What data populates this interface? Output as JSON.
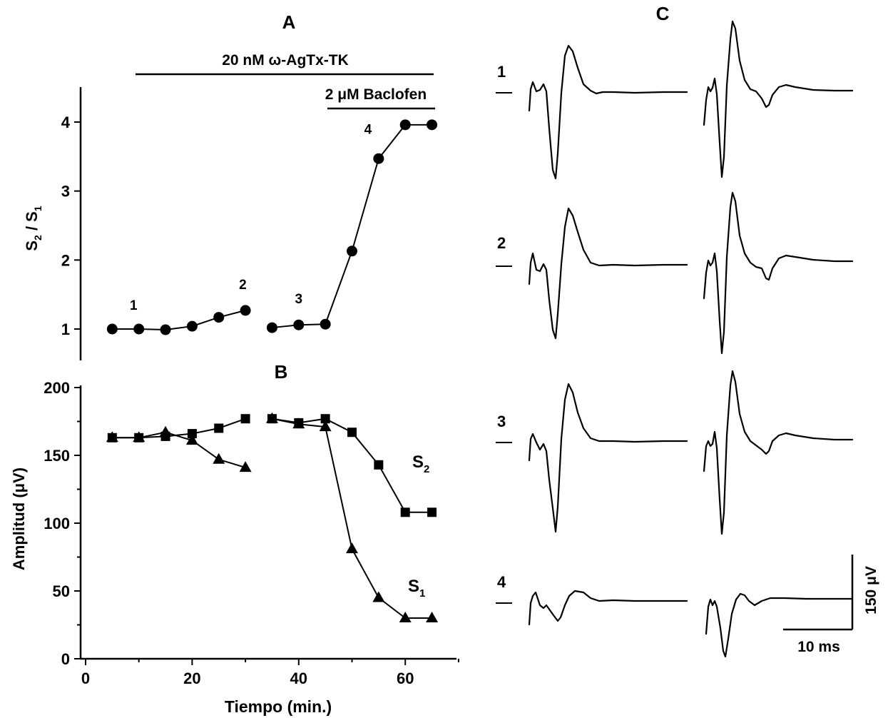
{
  "chart_data": [
    {
      "panel": "A",
      "type": "scatter",
      "title": "A",
      "ylabel": "S2 / S1",
      "ylabel_main": "S",
      "ylabel_sub1": "2",
      "ylabel_slash": " / S",
      "ylabel_sub2": "1",
      "xlim": [
        0,
        70
      ],
      "ylim": [
        0.6,
        4.5
      ],
      "yticks": [
        1,
        2,
        3,
        4
      ],
      "series": [
        {
          "segments": [
            {
              "x": [
                5,
                10,
                15,
                20,
                25,
                30
              ],
              "y": [
                1.0,
                1.0,
                0.99,
                1.04,
                1.17,
                1.27
              ]
            },
            {
              "x": [
                35,
                40,
                45,
                50,
                55,
                60,
                65
              ],
              "y": [
                1.02,
                1.06,
                1.07,
                2.13,
                3.47,
                3.96,
                3.96
              ]
            }
          ],
          "marker": "circle"
        }
      ],
      "point_labels": [
        {
          "text": "1",
          "x": 9,
          "y": 1.28
        },
        {
          "text": "2",
          "x": 29.5,
          "y": 1.58
        },
        {
          "text": "3",
          "x": 40,
          "y": 1.37
        },
        {
          "text": "4",
          "x": 53,
          "y": 3.83
        }
      ],
      "bars": [
        {
          "label": "20 nM ω-AgTx-TK",
          "x0": 9,
          "x1": 65
        },
        {
          "label": "2 μM Baclofen",
          "x0": 45,
          "x1": 65
        }
      ]
    },
    {
      "panel": "B",
      "type": "scatter",
      "title": "B",
      "xlabel": "Tiempo (min.)",
      "ylabel": "Amplitud (μV)",
      "xlim": [
        0,
        70
      ],
      "ylim": [
        0,
        200
      ],
      "xticks": [
        0,
        20,
        40,
        60
      ],
      "yticks": [
        0,
        50,
        100,
        150,
        200
      ],
      "series": [
        {
          "name": "S2",
          "label_main": "S",
          "label_sub": "2",
          "marker": "square",
          "segments": [
            {
              "x": [
                5,
                10,
                15,
                20,
                25,
                30
              ],
              "y": [
                163,
                163,
                164,
                166,
                170,
                177
              ]
            },
            {
              "x": [
                35,
                40,
                45,
                50,
                55,
                60,
                65
              ],
              "y": [
                177,
                174,
                177,
                167,
                143,
                108,
                108
              ]
            }
          ]
        },
        {
          "name": "S1",
          "label_main": "S",
          "label_sub": "1",
          "marker": "triangle",
          "segments": [
            {
              "x": [
                5,
                10,
                15,
                20,
                25,
                30
              ],
              "y": [
                163,
                163,
                167,
                161,
                147,
                141
              ]
            },
            {
              "x": [
                35,
                40,
                45,
                50,
                55,
                60,
                65
              ],
              "y": [
                177,
                173,
                171,
                81,
                45,
                30,
                30
              ]
            }
          ]
        }
      ]
    },
    {
      "panel": "C",
      "type": "line",
      "title": "C",
      "row_labels": [
        "1",
        "2",
        "3",
        "4"
      ],
      "scale_bar": {
        "y_label": "150 μV",
        "x_label": "10 ms"
      }
    }
  ]
}
